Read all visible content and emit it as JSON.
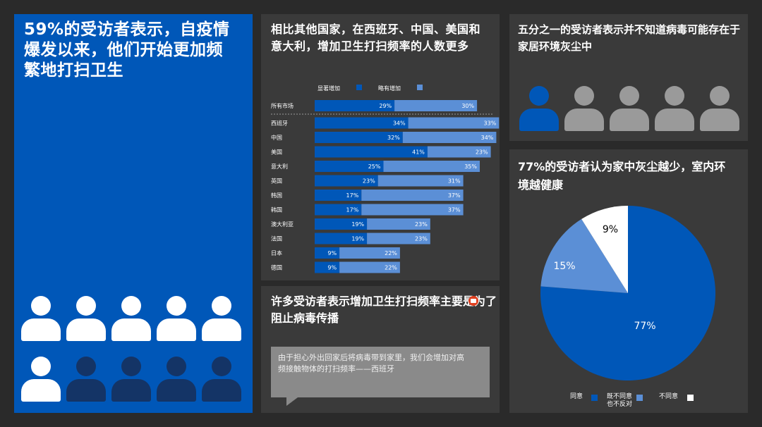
{
  "panel1": {
    "title": "59%的受访者表示，自疫情爆发以来，他们开始更加频繁地打扫卫生",
    "people": [
      {
        "color": "white"
      },
      {
        "color": "white"
      },
      {
        "color": "white"
      },
      {
        "color": "white"
      },
      {
        "color": "white"
      },
      {
        "color": "white"
      },
      {
        "color": "navy"
      },
      {
        "color": "navy"
      },
      {
        "color": "navy"
      },
      {
        "color": "navy"
      }
    ]
  },
  "panel2": {
    "title": "相比其他国家，在西班牙、中国、美国和意大利，增加卫生打扫频率的人数更多",
    "legend": [
      {
        "label": "显著增加",
        "color": "#0057b8"
      },
      {
        "label": "略有增加",
        "color": "#5b8fd6"
      }
    ]
  },
  "panel3": {
    "title": "许多受访者表示增加卫生打扫频率主要是为了阻止病毒传播",
    "quote": "由于担心外出回家后将病毒带到家里，我们会增加对高频接触物体的打扫频率——西班牙"
  },
  "panel4": {
    "title": "五分之一的受访者表示并不知道病毒可能存在于家居环境灰尘中",
    "people": [
      {
        "color": "blue"
      },
      {
        "color": "grey"
      },
      {
        "color": "grey"
      },
      {
        "color": "grey"
      },
      {
        "color": "grey"
      }
    ]
  },
  "panel5": {
    "title": "77%的受访者认为家中灰尘越少，室内环境越健康",
    "legend": [
      {
        "label": "同意",
        "color": "#0057b8"
      },
      {
        "label": "既不同意也不反对",
        "color": "#5b8fd6"
      },
      {
        "label": "不同意",
        "color": "#ffffff"
      }
    ]
  },
  "colors": {
    "dark_blue": "#0057b8",
    "light_blue": "#5b8fd6",
    "white": "#ffffff",
    "navy": "#143466",
    "grey": "#9a9a9a"
  },
  "chart_data": [
    {
      "type": "bar",
      "orientation": "horizontal",
      "stacked": true,
      "categories": [
        "所有市场",
        "西班牙",
        "中国",
        "美国",
        "意大利",
        "英国",
        "韩国",
        "韩国",
        "澳大利亚",
        "法国",
        "日本",
        "德国"
      ],
      "series": [
        {
          "name": "显著增加",
          "values": [
            29,
            34,
            32,
            41,
            25,
            23,
            17,
            17,
            19,
            19,
            9,
            9
          ],
          "labels": [
            "29%",
            "34%",
            "32%",
            "41%",
            "25%",
            "23%",
            "17%",
            "17%",
            "19%",
            "19%",
            "9%",
            "9%"
          ]
        },
        {
          "name": "略有增加",
          "values": [
            30,
            33,
            34,
            23,
            35,
            31,
            37,
            37,
            23,
            23,
            22,
            22
          ],
          "labels": [
            "30%",
            "33%",
            "34%",
            "23%",
            "35%",
            "31%",
            "37%",
            "37%",
            "23%",
            "23%",
            "22%",
            "22%"
          ]
        }
      ],
      "legend_position": "top"
    },
    {
      "type": "pie",
      "categories": [
        "同意",
        "既不同意也不反对",
        "不同意"
      ],
      "values": [
        77,
        15,
        9
      ],
      "labels": [
        "77%",
        "15%",
        "9%"
      ],
      "legend_position": "bottom"
    }
  ]
}
